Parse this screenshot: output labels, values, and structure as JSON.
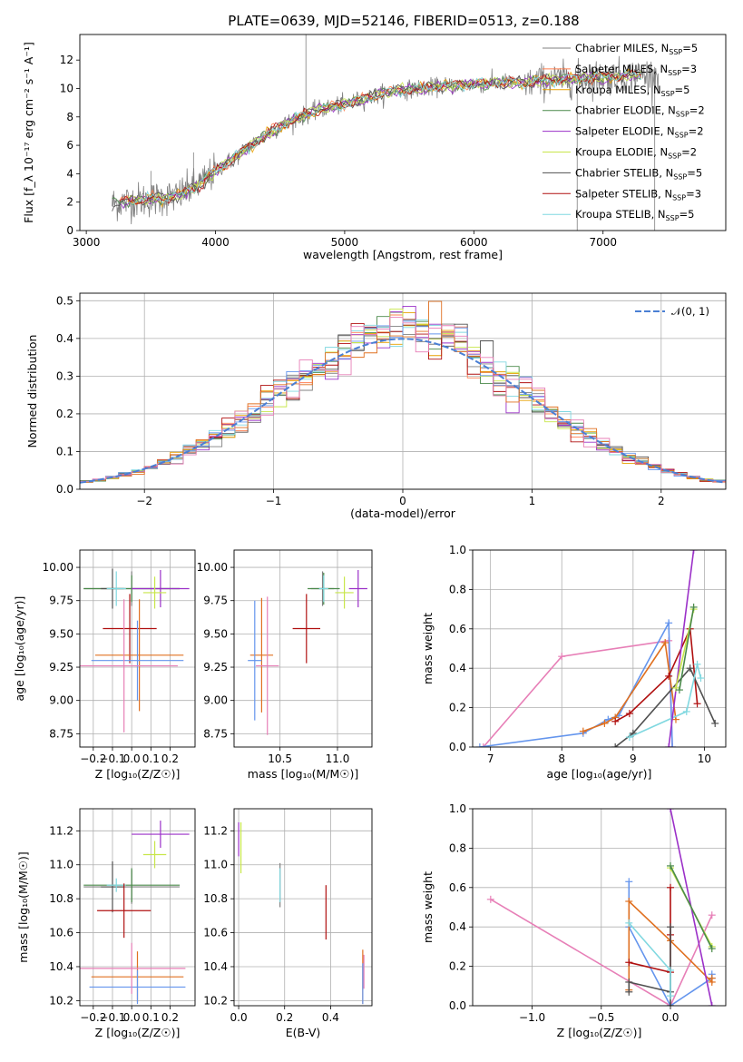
{
  "figure": {
    "title": "PLATE=0639, MJD=52146, FIBERID=0513, z=0.188"
  },
  "colors": {
    "chabrier_miles": "#808080",
    "salpeter_miles": "#ff7f50",
    "kroupa_miles": "#e8a000",
    "chabrier_elodie": "#4a8a4a",
    "salpeter_elodie": "#9b30c8",
    "kroupa_elodie": "#c8e64a",
    "chabrier_stelib": "#505050",
    "salpeter_stelib": "#b01010",
    "kroupa_stelib": "#80d8e0",
    "fit_blue": "#6495ed",
    "fit_orange": "#e07020",
    "fit_pink": "#e77fb7"
  },
  "chart_data": [
    {
      "id": "spectrum",
      "type": "line",
      "xlabel": "wavelength [Angstrom, rest frame]",
      "ylabel": "Flux [f_λ 10⁻¹⁷ erg cm⁻² s⁻¹ A⁻¹]",
      "xlim": [
        2950,
        7950
      ],
      "ylim": [
        0,
        13.8
      ],
      "xticks": [
        3000,
        4000,
        5000,
        6000,
        7000
      ],
      "yticks": [
        0,
        2,
        4,
        6,
        8,
        10,
        12
      ],
      "grid": false,
      "legend_position": "right",
      "legend": [
        {
          "label": "Chabrier MILES, N",
          "sub": "SSP",
          "suffix": "=5",
          "color": "#808080"
        },
        {
          "label": "Salpeter MILES, N",
          "sub": "SSP",
          "suffix": "=3",
          "color": "#ff7f50"
        },
        {
          "label": "Kroupa MILES, N",
          "sub": "SSP",
          "suffix": "=5",
          "color": "#e8a000"
        },
        {
          "label": "Chabrier ELODIE, N",
          "sub": "SSP",
          "suffix": "=2",
          "color": "#4a8a4a"
        },
        {
          "label": "Salpeter ELODIE, N",
          "sub": "SSP",
          "suffix": "=2",
          "color": "#9b30c8"
        },
        {
          "label": "Kroupa ELODIE, N",
          "sub": "SSP",
          "suffix": "=2",
          "color": "#c8e64a"
        },
        {
          "label": "Chabrier STELIB, N",
          "sub": "SSP",
          "suffix": "=5",
          "color": "#505050"
        },
        {
          "label": "Salpeter STELIB, N",
          "sub": "SSP",
          "suffix": "=3",
          "color": "#b01010"
        },
        {
          "label": "Kroupa STELIB, N",
          "sub": "SSP",
          "suffix": "=5",
          "color": "#80d8e0"
        }
      ],
      "continuum_x": [
        3200,
        3350,
        3500,
        3700,
        3900,
        4000,
        4200,
        4400,
        4600,
        4800,
        5000,
        5200,
        5400,
        5600,
        5800,
        6000,
        6200,
        6400,
        6600,
        6800,
        7000,
        7200,
        7400
      ],
      "continuum_y": [
        1.9,
        2.1,
        2.2,
        2.4,
        3.4,
        4.2,
        5.5,
        6.8,
        7.8,
        8.5,
        8.9,
        9.4,
        9.9,
        10.0,
        10.2,
        10.3,
        10.4,
        10.4,
        10.6,
        10.7,
        10.8,
        10.9,
        11.0
      ]
    },
    {
      "id": "residuals",
      "type": "line",
      "xlabel": "(data-model)/error",
      "ylabel": "Normed distribution",
      "xlim": [
        -2.5,
        2.5
      ],
      "ylim": [
        0,
        0.52
      ],
      "xticks": [
        -2,
        -1,
        0,
        1,
        2
      ],
      "yticks": [
        0.0,
        0.1,
        0.2,
        0.3,
        0.4,
        0.5
      ],
      "grid": true,
      "legend_position": "top-right",
      "legend_label": "𝒩(0, 1)",
      "bin_width": 0.1,
      "gaussian": {
        "mean": 0,
        "sigma": 1
      }
    },
    {
      "id": "age_vs_z",
      "type": "scatter",
      "xlabel": "Z [log₁₀(Z/Z☉)]",
      "ylabel": "age  [log₁₀(age/yr)]",
      "xlim": [
        -0.27,
        0.33
      ],
      "ylim": [
        8.65,
        10.13
      ],
      "xticks": [
        -0.2,
        -0.1,
        0.0,
        0.1,
        0.2
      ],
      "yticks": [
        8.75,
        9.0,
        9.25,
        9.5,
        9.75,
        10.0
      ],
      "grid": true,
      "points": [
        {
          "x": 0.0,
          "xerr": 0.25,
          "y": 9.84,
          "yerr": 0.13,
          "color": "#808080"
        },
        {
          "x": 0.0,
          "xerr": 0.25,
          "y": 9.84,
          "yerr": 0.1,
          "color": "#4a8a4a"
        },
        {
          "x": 0.15,
          "xerr": 0.15,
          "y": 9.84,
          "yerr": 0.14,
          "color": "#9b30c8"
        },
        {
          "x": 0.12,
          "xerr": 0.06,
          "y": 9.81,
          "yerr": 0.12,
          "color": "#c8e64a"
        },
        {
          "x": -0.1,
          "xerr": 0.06,
          "y": 9.84,
          "yerr": 0.15,
          "color": "#505050"
        },
        {
          "x": -0.08,
          "xerr": 0.05,
          "y": 9.84,
          "yerr": 0.13,
          "color": "#80d8e0"
        },
        {
          "x": -0.01,
          "xerr": 0.14,
          "y": 9.54,
          "yerr": 0.26,
          "color": "#b01010"
        },
        {
          "x": 0.04,
          "xerr": 0.23,
          "y": 9.34,
          "yerr": 0.42,
          "color": "#e07020"
        },
        {
          "x": 0.03,
          "xerr": 0.24,
          "y": 9.3,
          "yerr": 0.3,
          "color": "#6495ed"
        },
        {
          "x": -0.04,
          "xerr": 0.28,
          "y": 9.26,
          "yerr": 0.5,
          "color": "#e77fb7"
        }
      ]
    },
    {
      "id": "age_vs_mass",
      "type": "scatter",
      "xlabel": "mass [log₁₀(M/M☉)]",
      "xlim": [
        10.1,
        11.3
      ],
      "ylim": [
        8.65,
        10.13
      ],
      "xticks": [
        10.5,
        11.0
      ],
      "yticks": [
        8.75,
        9.0,
        9.25,
        9.5,
        9.75,
        10.0
      ],
      "grid": true,
      "points": [
        {
          "x": 10.87,
          "xerr": 0.1,
          "y": 9.84,
          "yerr": 0.13,
          "color": "#808080"
        },
        {
          "x": 10.88,
          "xerr": 0.14,
          "y": 9.84,
          "yerr": 0.12,
          "color": "#4a8a4a"
        },
        {
          "x": 11.18,
          "xerr": 0.08,
          "y": 9.84,
          "yerr": 0.14,
          "color": "#9b30c8"
        },
        {
          "x": 11.06,
          "xerr": 0.08,
          "y": 9.81,
          "yerr": 0.12,
          "color": "#c8e64a"
        },
        {
          "x": 10.88,
          "xerr": 0.04,
          "y": 9.84,
          "yerr": 0.1,
          "color": "#80d8e0"
        },
        {
          "x": 10.73,
          "xerr": 0.12,
          "y": 9.54,
          "yerr": 0.26,
          "color": "#b01010"
        },
        {
          "x": 10.34,
          "xerr": 0.1,
          "y": 9.34,
          "yerr": 0.43,
          "color": "#e07020"
        },
        {
          "x": 10.28,
          "xerr": 0.06,
          "y": 9.3,
          "yerr": 0.45,
          "color": "#6495ed"
        },
        {
          "x": 10.39,
          "xerr": 0.1,
          "y": 9.26,
          "yerr": 0.52,
          "color": "#e77fb7"
        }
      ]
    },
    {
      "id": "mass_weight_vs_age",
      "type": "line",
      "xlabel": "age  [log₁₀(age/yr)]",
      "ylabel": "mass weight",
      "xlim": [
        6.75,
        10.3
      ],
      "ylim": [
        0,
        1.0
      ],
      "xticks": [
        7,
        8,
        9,
        10
      ],
      "yticks": [
        0.0,
        0.2,
        0.4,
        0.6,
        0.8,
        1.0
      ],
      "grid": true,
      "series": [
        {
          "color": "#e77fb7",
          "x": [
            6.9,
            8.0,
            9.5,
            9.55
          ],
          "y": [
            0.0,
            0.46,
            0.54,
            0.0
          ]
        },
        {
          "color": "#6495ed",
          "x": [
            6.85,
            8.3,
            8.65,
            8.8,
            9.5,
            9.55
          ],
          "y": [
            0.0,
            0.07,
            0.14,
            0.16,
            0.63,
            0.0
          ]
        },
        {
          "color": "#e07020",
          "x": [
            8.3,
            8.6,
            8.75,
            9.45,
            9.6
          ],
          "y": [
            0.08,
            0.12,
            0.15,
            0.53,
            0.14
          ]
        },
        {
          "color": "#b01010",
          "x": [
            8.75,
            8.95,
            9.5,
            9.8,
            9.9
          ],
          "y": [
            0.13,
            0.17,
            0.36,
            0.6,
            0.22
          ]
        },
        {
          "color": "#505050",
          "x": [
            8.75,
            9.0,
            9.8,
            10.15
          ],
          "y": [
            0.0,
            0.07,
            0.4,
            0.12
          ]
        },
        {
          "color": "#80d8e0",
          "x": [
            8.95,
            9.75,
            9.9,
            9.95
          ],
          "y": [
            0.05,
            0.18,
            0.42,
            0.35
          ]
        },
        {
          "color": "#9b30c8",
          "x": [
            9.5,
            9.85
          ],
          "y": [
            0.0,
            1.0
          ]
        },
        {
          "color": "#c8e64a",
          "x": [
            9.6,
            9.85
          ],
          "y": [
            0.3,
            0.7
          ]
        },
        {
          "color": "#4a8a4a",
          "x": [
            9.65,
            9.85
          ],
          "y": [
            0.29,
            0.71
          ]
        }
      ]
    },
    {
      "id": "mass_vs_z",
      "type": "scatter",
      "xlabel": "Z [log₁₀(Z/Z☉)]",
      "ylabel": "mass [log₁₀(M/M☉)]",
      "xlim": [
        -0.27,
        0.33
      ],
      "ylim": [
        10.17,
        11.33
      ],
      "xticks": [
        -0.2,
        -0.1,
        0.0,
        0.1,
        0.2
      ],
      "yticks": [
        10.2,
        10.4,
        10.6,
        10.8,
        11.0,
        11.2
      ],
      "grid": true,
      "points": [
        {
          "x": 0.0,
          "xerr": 0.25,
          "y": 10.87,
          "yerr": 0.1,
          "color": "#808080"
        },
        {
          "x": 0.0,
          "xerr": 0.25,
          "y": 10.88,
          "yerr": 0.1,
          "color": "#4a8a4a"
        },
        {
          "x": 0.15,
          "xerr": 0.15,
          "y": 11.18,
          "yerr": 0.08,
          "color": "#9b30c8"
        },
        {
          "x": 0.12,
          "xerr": 0.06,
          "y": 11.06,
          "yerr": 0.08,
          "color": "#c8e64a"
        },
        {
          "x": -0.1,
          "xerr": 0.06,
          "y": 10.87,
          "yerr": 0.15,
          "color": "#505050"
        },
        {
          "x": -0.08,
          "xerr": 0.05,
          "y": 10.88,
          "yerr": 0.04,
          "color": "#80d8e0"
        },
        {
          "x": -0.04,
          "xerr": 0.14,
          "y": 10.73,
          "yerr": 0.16,
          "color": "#b01010"
        },
        {
          "x": 0.03,
          "xerr": 0.24,
          "y": 10.34,
          "yerr": 0.15,
          "color": "#e07020"
        },
        {
          "x": 0.03,
          "xerr": 0.25,
          "y": 10.28,
          "yerr": 0.1,
          "color": "#6495ed"
        },
        {
          "x": 0.0,
          "xerr": 0.28,
          "y": 10.39,
          "yerr": 0.15,
          "color": "#e77fb7"
        }
      ]
    },
    {
      "id": "mass_vs_ebv",
      "type": "scatter",
      "xlabel": "E(B-V)",
      "xlim": [
        -0.02,
        0.58
      ],
      "ylim": [
        10.17,
        11.33
      ],
      "xticks": [
        0.0,
        0.2,
        0.4
      ],
      "yticks": [
        10.2,
        10.4,
        10.6,
        10.8,
        11.0,
        11.2
      ],
      "grid": true,
      "points": [
        {
          "x": 0.01,
          "y": 11.1,
          "yerr": 0.15,
          "color": "#c8e64a"
        },
        {
          "x": 0.0,
          "y": 11.15,
          "yerr": 0.1,
          "color": "#9b30c8"
        },
        {
          "x": 0.18,
          "y": 10.88,
          "yerr": 0.13,
          "color": "#808080"
        },
        {
          "x": 0.18,
          "y": 10.88,
          "yerr": 0.1,
          "color": "#80d8e0"
        },
        {
          "x": 0.38,
          "y": 10.72,
          "yerr": 0.16,
          "color": "#b01010"
        },
        {
          "x": 0.54,
          "y": 10.34,
          "yerr": 0.16,
          "color": "#e07020"
        },
        {
          "x": 0.54,
          "y": 10.3,
          "yerr": 0.12,
          "color": "#6495ed"
        },
        {
          "x": 0.545,
          "y": 10.37,
          "yerr": 0.1,
          "color": "#e77fb7"
        }
      ]
    },
    {
      "id": "mass_weight_vs_z",
      "type": "line",
      "xlabel": "Z [log₁₀(Z/Z☉)]",
      "ylabel": "mass weight",
      "xlim": [
        -1.43,
        0.4
      ],
      "ylim": [
        0,
        1.0
      ],
      "xticks": [
        -1.0,
        -0.5,
        0.0
      ],
      "yticks": [
        0.0,
        0.2,
        0.4,
        0.6,
        0.8,
        1.0
      ],
      "grid": true,
      "series": [
        {
          "color": "#e77fb7",
          "x": [
            -1.3,
            0.0,
            0.3
          ],
          "y": [
            0.54,
            0.0,
            0.46
          ]
        },
        {
          "color": "#6495ed",
          "x": [
            -0.3,
            -0.3,
            0.0,
            0.3,
            0.3
          ],
          "y": [
            0.63,
            0.4,
            0.0,
            0.14,
            0.16
          ]
        },
        {
          "color": "#e07020",
          "x": [
            -0.3,
            -0.3,
            0.0,
            0.3,
            0.3
          ],
          "y": [
            0.08,
            0.53,
            0.33,
            0.12,
            0.14
          ]
        },
        {
          "color": "#b01010",
          "x": [
            -0.3,
            0.0,
            0.0,
            0.0
          ],
          "y": [
            0.22,
            0.17,
            0.6,
            0.36
          ]
        },
        {
          "color": "#505050",
          "x": [
            -0.3,
            -0.3,
            0.0,
            0.0,
            0.0
          ],
          "y": [
            0.07,
            0.12,
            0.07,
            0.4,
            0.0
          ]
        },
        {
          "color": "#80d8e0",
          "x": [
            -0.3,
            0.0,
            0.0
          ],
          "y": [
            0.42,
            0.18,
            0.05
          ]
        },
        {
          "color": "#9b30c8",
          "x": [
            0.0,
            0.3
          ],
          "y": [
            1.0,
            0.0
          ]
        },
        {
          "color": "#c8e64a",
          "x": [
            0.0,
            0.3
          ],
          "y": [
            0.7,
            0.3
          ]
        },
        {
          "color": "#4a8a4a",
          "x": [
            0.0,
            0.3
          ],
          "y": [
            0.71,
            0.29
          ]
        }
      ]
    }
  ]
}
